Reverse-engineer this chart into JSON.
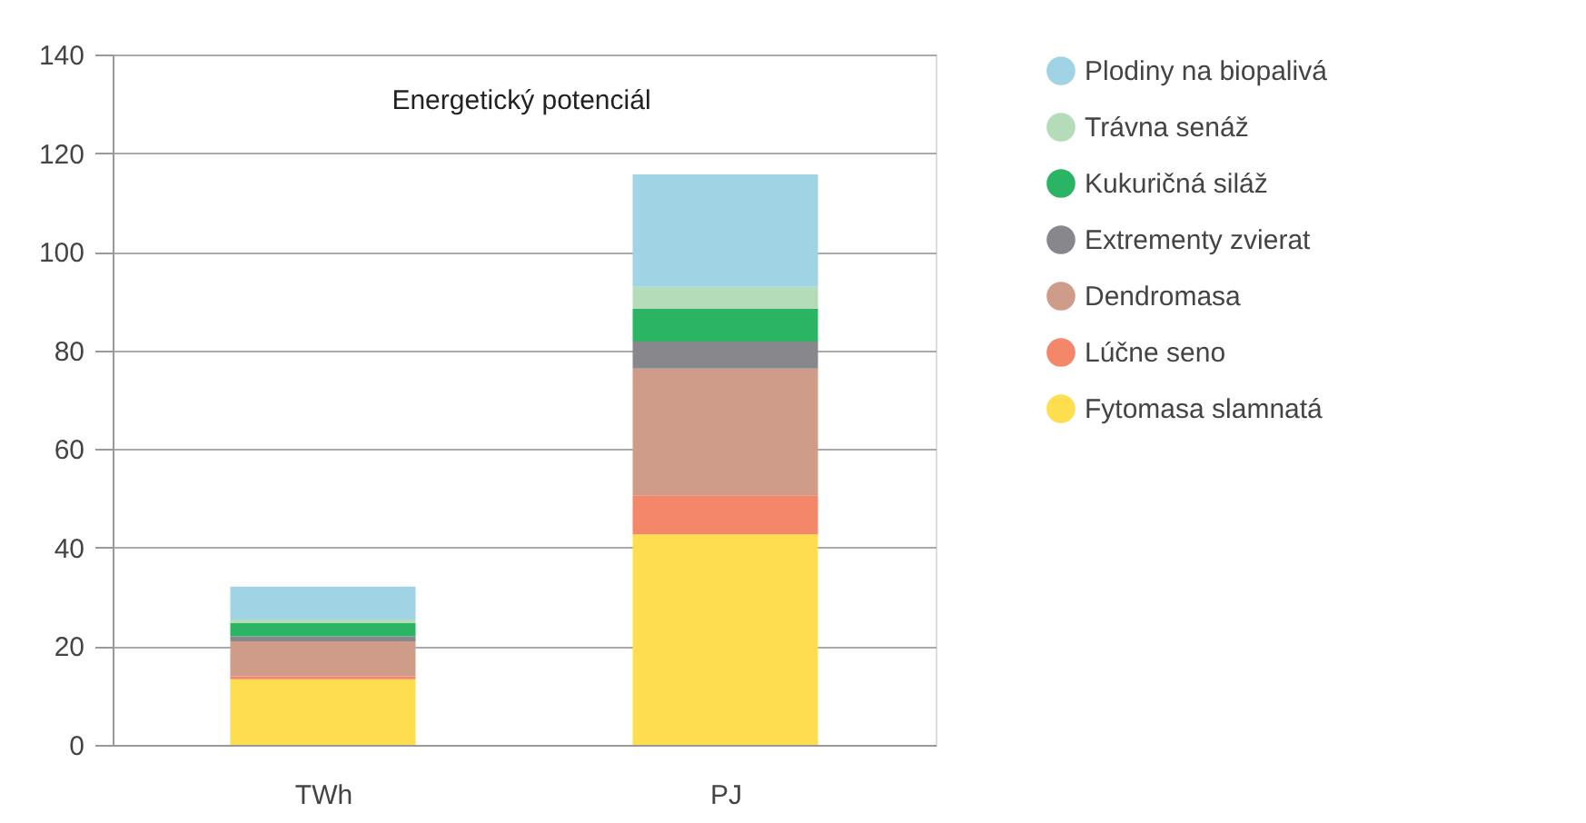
{
  "chart_data": {
    "type": "bar",
    "title": "Energetický potenciál",
    "categories": [
      "TWh",
      "PJ"
    ],
    "stacked": true,
    "series": [
      {
        "name": "Fytomasa slamnatá",
        "color": "#fedd4e",
        "values": [
          13.3,
          42.7
        ]
      },
      {
        "name": "Lúčne seno",
        "color": "#f4876a",
        "values": [
          0.6,
          7.9
        ]
      },
      {
        "name": "Dendromasa",
        "color": "#cf9c89",
        "values": [
          7.1,
          25.7
        ]
      },
      {
        "name": "Extrementy zvierat",
        "color": "#88888c",
        "values": [
          1.0,
          5.5
        ]
      },
      {
        "name": "Kukuričná siláž",
        "color": "#2bb463",
        "values": [
          2.7,
          6.6
        ]
      },
      {
        "name": "Trávna senáž",
        "color": "#b4dcb9",
        "values": [
          0.7,
          4.5
        ]
      },
      {
        "name": "Plodiny na biopalivá",
        "color": "#a0d4e4",
        "values": [
          6.7,
          22.8
        ]
      }
    ],
    "ylim": [
      0,
      140
    ],
    "yticks": [
      0,
      20,
      40,
      60,
      80,
      100,
      120,
      140
    ],
    "grid": "y",
    "legend": "right"
  }
}
